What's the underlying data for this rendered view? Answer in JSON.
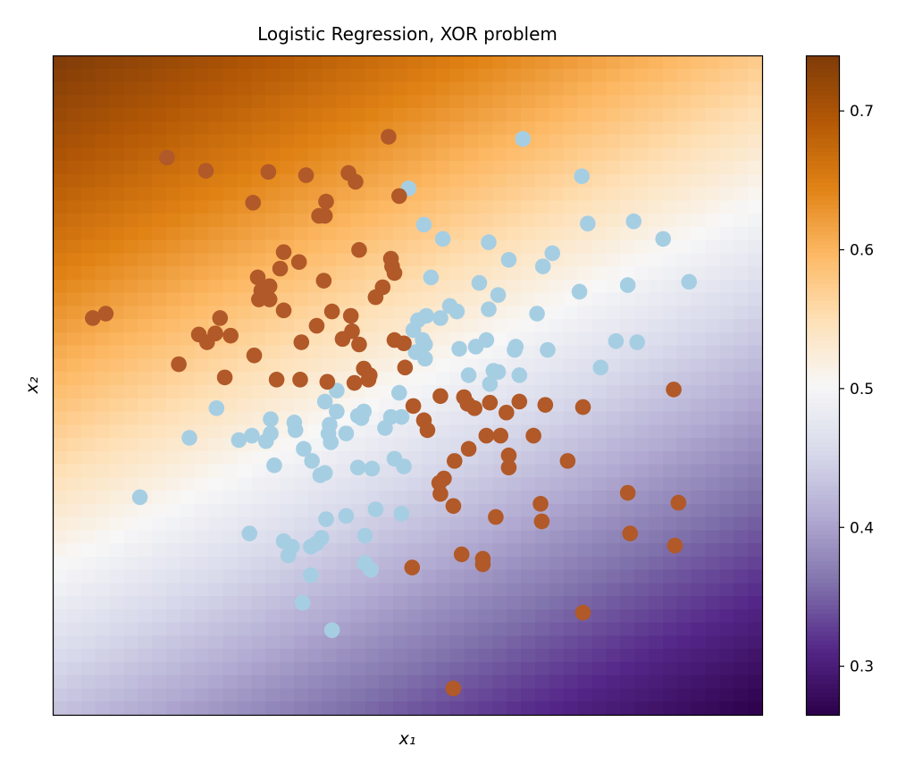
{
  "chart_data": {
    "type": "heatmap",
    "title": "Logistic Regression, XOR problem",
    "xlabel": "x₁",
    "ylabel": "x₂",
    "xlim": [
      -3.01,
      3.01
    ],
    "ylim": [
      -3.0,
      3.0
    ],
    "grid": false,
    "axis_ticks_shown": false,
    "heatmap": {
      "description_of_values": "predicted probability",
      "resolution": 50,
      "model": {
        "intercept": 0.011,
        "coef_x1": -0.123,
        "coef_x2": 0.222
      },
      "colormap": "PuOr_r",
      "colormap_stops": [
        "#7f3b08",
        "#b35806",
        "#e08214",
        "#fdb863",
        "#fee0b6",
        "#f7f7f7",
        "#d8daeb",
        "#b2abd2",
        "#8073ac",
        "#542788",
        "#2d004b"
      ]
    },
    "colorbar": {
      "range": [
        0.265,
        0.74
      ],
      "ticks": [
        0.3,
        0.4,
        0.5,
        0.6,
        0.7
      ],
      "tick_labels": [
        "0.3",
        "0.4",
        "0.5",
        "0.6",
        "0.7"
      ]
    },
    "series": [
      {
        "class": 0,
        "color": "#a6cee3",
        "points": [
          [
            0.98,
            2.24
          ],
          [
            0.01,
            1.79
          ],
          [
            1.48,
            1.9
          ],
          [
            0.14,
            1.46
          ],
          [
            0.3,
            1.33
          ],
          [
            0.69,
            1.3
          ],
          [
            1.53,
            1.47
          ],
          [
            1.92,
            1.49
          ],
          [
            2.17,
            1.33
          ],
          [
            0.86,
            1.14
          ],
          [
            1.23,
            1.2
          ],
          [
            1.15,
            1.08
          ],
          [
            0.2,
            0.98
          ],
          [
            0.61,
            0.93
          ],
          [
            0.77,
            0.82
          ],
          [
            1.46,
            0.85
          ],
          [
            1.87,
            0.91
          ],
          [
            2.39,
            0.94
          ],
          [
            0.69,
            0.69
          ],
          [
            1.1,
            0.65
          ],
          [
            0.36,
            0.72
          ],
          [
            0.42,
            0.67
          ],
          [
            0.28,
            0.61
          ],
          [
            0.16,
            0.63
          ],
          [
            0.09,
            0.59
          ],
          [
            0.05,
            0.5
          ],
          [
            0.13,
            0.41
          ],
          [
            0.15,
            0.37
          ],
          [
            0.07,
            0.3
          ],
          [
            0.15,
            0.24
          ],
          [
            0.44,
            0.33
          ],
          [
            0.58,
            0.35
          ],
          [
            0.67,
            0.41
          ],
          [
            0.92,
            0.35
          ],
          [
            0.91,
            0.32
          ],
          [
            1.19,
            0.32
          ],
          [
            1.77,
            0.4
          ],
          [
            1.95,
            0.39
          ],
          [
            1.64,
            0.16
          ],
          [
            0.52,
            0.09
          ],
          [
            0.73,
            0.13
          ],
          [
            0.77,
            0.12
          ],
          [
            0.7,
            0.01
          ],
          [
            0.95,
            0.09
          ],
          [
            -0.07,
            -0.07
          ],
          [
            -0.6,
            -0.05
          ],
          [
            -0.7,
            -0.15
          ],
          [
            -0.6,
            -0.24
          ],
          [
            -0.42,
            -0.28
          ],
          [
            -0.37,
            -0.24
          ],
          [
            -0.39,
            -0.3
          ],
          [
            -1.16,
            -0.31
          ],
          [
            -0.96,
            -0.34
          ],
          [
            -0.95,
            -0.41
          ],
          [
            -0.66,
            -0.36
          ],
          [
            -0.67,
            -0.44
          ],
          [
            -0.65,
            -0.52
          ],
          [
            -0.52,
            -0.44
          ],
          [
            -0.14,
            -0.29
          ],
          [
            -0.05,
            -0.29
          ],
          [
            -0.19,
            -0.39
          ],
          [
            -1.62,
            -0.21
          ],
          [
            -1.85,
            -0.48
          ],
          [
            -1.43,
            -0.5
          ],
          [
            -1.32,
            -0.46
          ],
          [
            -1.16,
            -0.44
          ],
          [
            -1.2,
            -0.51
          ],
          [
            -0.88,
            -0.58
          ],
          [
            -0.81,
            -0.69
          ],
          [
            -1.13,
            -0.73
          ],
          [
            -0.74,
            -0.82
          ],
          [
            -0.7,
            -0.8
          ],
          [
            -0.42,
            -0.75
          ],
          [
            -0.3,
            -0.76
          ],
          [
            -0.11,
            -0.67
          ],
          [
            -0.03,
            -0.74
          ],
          [
            -2.27,
            -1.02
          ],
          [
            -0.69,
            -1.22
          ],
          [
            -0.52,
            -1.19
          ],
          [
            -0.27,
            -1.13
          ],
          [
            -0.05,
            -1.17
          ],
          [
            -1.34,
            -1.35
          ],
          [
            -1.05,
            -1.42
          ],
          [
            -0.98,
            -1.47
          ],
          [
            -1.01,
            -1.55
          ],
          [
            -0.82,
            -1.47
          ],
          [
            -0.73,
            -1.39
          ],
          [
            -0.77,
            -1.44
          ],
          [
            -0.36,
            -1.37
          ],
          [
            -0.36,
            -1.62
          ],
          [
            -0.31,
            -1.68
          ],
          [
            -0.82,
            -1.73
          ],
          [
            -0.89,
            -1.98
          ],
          [
            -0.64,
            -2.23
          ]
        ]
      },
      {
        "class": 1,
        "color": "#b15928",
        "points": [
          [
            -0.16,
            2.26
          ],
          [
            -2.04,
            2.07
          ],
          [
            -1.71,
            1.95
          ],
          [
            -1.18,
            1.94
          ],
          [
            -0.86,
            1.91
          ],
          [
            -0.5,
            1.93
          ],
          [
            -0.44,
            1.85
          ],
          [
            -0.07,
            1.72
          ],
          [
            -1.31,
            1.66
          ],
          [
            -0.69,
            1.67
          ],
          [
            -0.75,
            1.54
          ],
          [
            -0.7,
            1.54
          ],
          [
            -1.05,
            1.21
          ],
          [
            -0.41,
            1.23
          ],
          [
            -0.92,
            1.12
          ],
          [
            -1.08,
            1.06
          ],
          [
            -0.14,
            1.15
          ],
          [
            -0.13,
            1.08
          ],
          [
            -0.11,
            1.02
          ],
          [
            -1.27,
            0.98
          ],
          [
            -1.17,
            0.9
          ],
          [
            -1.24,
            0.86
          ],
          [
            -1.26,
            0.78
          ],
          [
            -1.17,
            0.78
          ],
          [
            -0.71,
            0.95
          ],
          [
            -0.21,
            0.89
          ],
          [
            -0.27,
            0.8
          ],
          [
            -1.05,
            0.68
          ],
          [
            -2.56,
            0.65
          ],
          [
            -2.67,
            0.61
          ],
          [
            -1.59,
            0.61
          ],
          [
            -0.64,
            0.67
          ],
          [
            -0.48,
            0.63
          ],
          [
            -0.47,
            0.49
          ],
          [
            -0.55,
            0.42
          ],
          [
            -0.41,
            0.37
          ],
          [
            -0.77,
            0.54
          ],
          [
            -1.77,
            0.46
          ],
          [
            -1.63,
            0.47
          ],
          [
            -1.7,
            0.39
          ],
          [
            -1.5,
            0.45
          ],
          [
            -0.9,
            0.39
          ],
          [
            -0.11,
            0.41
          ],
          [
            -0.03,
            0.38
          ],
          [
            -1.3,
            0.27
          ],
          [
            -1.94,
            0.19
          ],
          [
            -0.02,
            0.16
          ],
          [
            -1.55,
            0.07
          ],
          [
            -1.11,
            0.05
          ],
          [
            -0.91,
            0.05
          ],
          [
            -0.68,
            0.03
          ],
          [
            -0.37,
            0.15
          ],
          [
            -0.32,
            0.09
          ],
          [
            -0.45,
            0.02
          ],
          [
            -0.33,
            0.05
          ],
          [
            2.26,
            -0.04
          ],
          [
            0.28,
            -0.1
          ],
          [
            0.48,
            -0.11
          ],
          [
            0.51,
            -0.17
          ],
          [
            0.57,
            -0.21
          ],
          [
            0.05,
            -0.19
          ],
          [
            0.7,
            -0.16
          ],
          [
            0.95,
            -0.15
          ],
          [
            0.84,
            -0.25
          ],
          [
            1.17,
            -0.18
          ],
          [
            1.49,
            -0.2
          ],
          [
            0.14,
            -0.32
          ],
          [
            0.17,
            -0.41
          ],
          [
            0.67,
            -0.46
          ],
          [
            0.79,
            -0.46
          ],
          [
            1.07,
            -0.46
          ],
          [
            0.52,
            -0.58
          ],
          [
            0.4,
            -0.69
          ],
          [
            0.86,
            -0.64
          ],
          [
            0.86,
            -0.75
          ],
          [
            1.36,
            -0.69
          ],
          [
            0.31,
            -0.85
          ],
          [
            0.27,
            -0.89
          ],
          [
            0.28,
            -0.99
          ],
          [
            0.39,
            -1.1
          ],
          [
            0.75,
            -1.2
          ],
          [
            1.13,
            -1.08
          ],
          [
            1.14,
            -1.24
          ],
          [
            1.87,
            -0.98
          ],
          [
            2.3,
            -1.07
          ],
          [
            1.89,
            -1.35
          ],
          [
            2.27,
            -1.46
          ],
          [
            0.46,
            -1.54
          ],
          [
            0.64,
            -1.58
          ],
          [
            0.64,
            -1.63
          ],
          [
            0.04,
            -1.66
          ],
          [
            1.49,
            -2.07
          ],
          [
            0.39,
            -2.76
          ]
        ]
      }
    ]
  }
}
